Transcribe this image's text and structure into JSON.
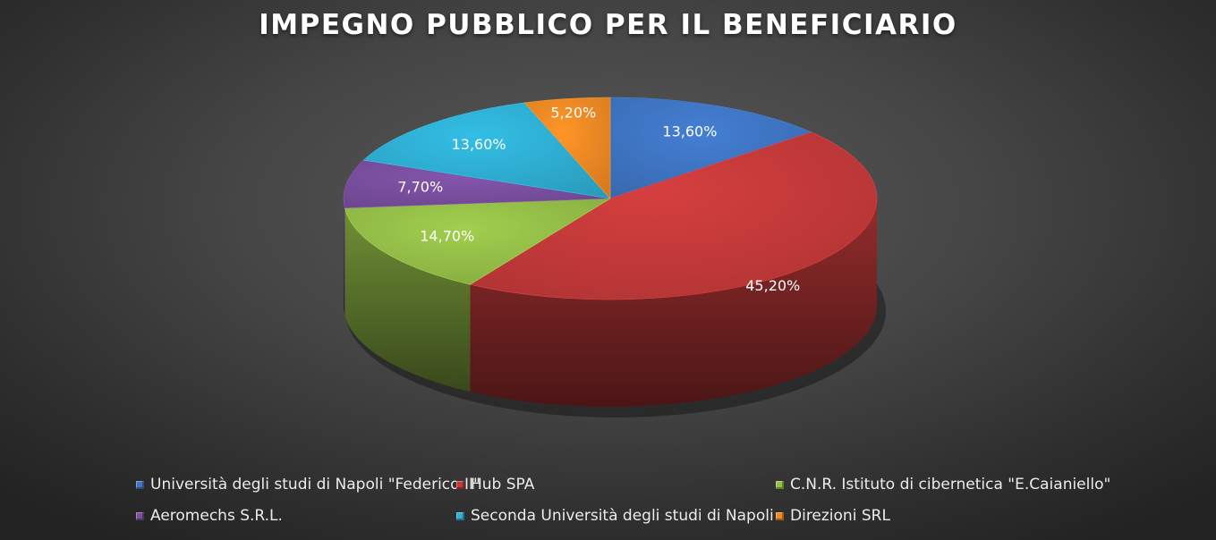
{
  "chart_data": {
    "type": "pie",
    "title": "IMPEGNO PUBBLICO PER IL BENEFICIARIO",
    "slices": [
      {
        "name": "Università degli studi di Napoli \"Federico II\"",
        "value": 13.6,
        "label": "13,60%",
        "color": "#3f76c4"
      },
      {
        "name": "Hub SPA",
        "value": 45.2,
        "label": "45,20%",
        "color": "#c63a3a"
      },
      {
        "name": "C.N.R. Istituto di cibernetica \"E.Caianiello\"",
        "value": 14.7,
        "label": "14,70%",
        "color": "#95c048"
      },
      {
        "name": "Aeromechs S.R.L.",
        "value": 7.7,
        "label": "7,70%",
        "color": "#7a4fa0"
      },
      {
        "name": "Seconda Università degli studi di Napoli",
        "value": 13.6,
        "label": "13,60%",
        "color": "#2fb0d4"
      },
      {
        "name": "Direzioni SRL",
        "value": 5.2,
        "label": "5,20%",
        "color": "#f08a24"
      }
    ],
    "legend_position": "bottom",
    "style": "3d"
  }
}
